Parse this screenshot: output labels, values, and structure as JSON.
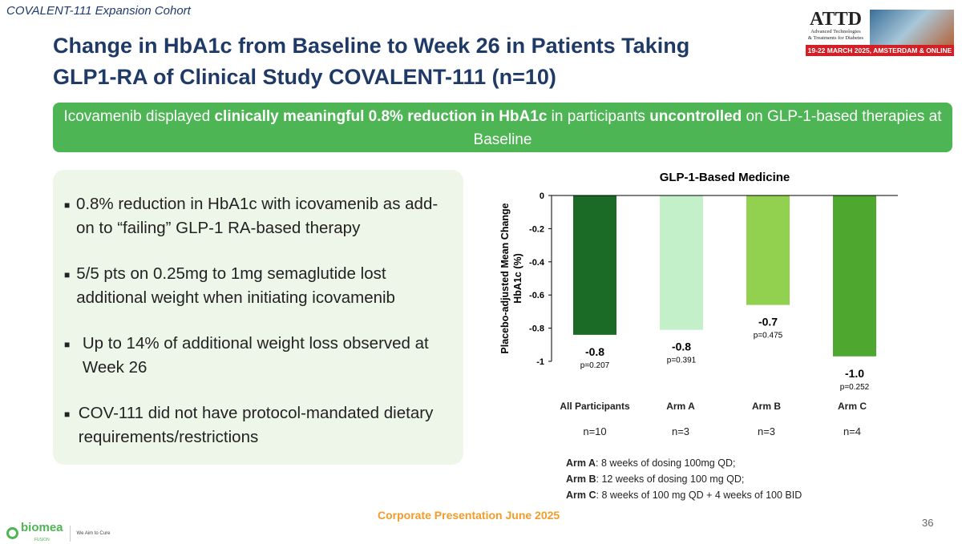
{
  "header": {
    "cohort": "COVALENT-111 Expansion Cohort",
    "title": "Change in HbA1c from Baseline to Week 26 in Patients Taking GLP1-RA of Clinical Study COVALENT-111 (n=10)",
    "conference_logo": {
      "name": "ATTD",
      "line1": "Advanced Technologies",
      "line2": "& Treatments for Diabetes",
      "banner": "19-22 MARCH 2025, AMSTERDAM & ONLINE"
    }
  },
  "banner": {
    "p1": "Icovamenib displayed ",
    "b1": "clinically meaningful 0.8% reduction in HbA1c",
    "p2": " in participants ",
    "b2": "uncontrolled",
    "p3": " on GLP-1-based therapies at Baseline"
  },
  "bullets": [
    "0.8% reduction in HbA1c with icovamenib as add-on  to “failing” GLP-1 RA-based therapy",
    "5/5 pts on 0.25mg to 1mg semaglutide lost additional weight when initiating icovamenib",
    "Up to 14% of additional weight loss observed at Week 26",
    "COV-111 did not have protocol-mandated dietary requirements/restrictions"
  ],
  "chart_data": {
    "type": "bar",
    "title": "GLP-1-Based Medicine",
    "ylabel": "Placebo-adjusted Mean Change HbA1c (%)",
    "xlabel": "",
    "categories": [
      "All Participants",
      "Arm A",
      "Arm B",
      "Arm C"
    ],
    "n_labels": [
      "n=10",
      "n=3",
      "n=3",
      "n=4"
    ],
    "values": [
      -0.84,
      -0.81,
      -0.66,
      -0.97
    ],
    "data_labels": [
      "-0.8",
      "-0.8",
      "-0.7",
      "-1.0"
    ],
    "p_values": [
      "p=0.207",
      "p=0.391",
      "p=0.475",
      "p=0.252"
    ],
    "colors": [
      "#1b6b26",
      "#c3f0c8",
      "#92d050",
      "#4ea72e"
    ],
    "ylim": [
      -1,
      0
    ],
    "yticks": [
      "0",
      "-0.2",
      "-0.4",
      "-0.6",
      "-0.8",
      "-1"
    ],
    "grid": false
  },
  "legend": [
    {
      "k": "Arm A",
      "v": ": 8 weeks of dosing 100mg QD;"
    },
    {
      "k": "Arm B",
      "v": ": 12 weeks of dosing 100 mg QD;"
    },
    {
      "k": "Arm C",
      "v": ": 8 weeks of 100 mg QD + 4 weeks of 100 BID"
    }
  ],
  "footer": {
    "text": "Corporate Presentation June 2025",
    "page": "36",
    "company": "biomea",
    "company_sub": "FUSION",
    "tagline": "We Aim to Cure"
  }
}
